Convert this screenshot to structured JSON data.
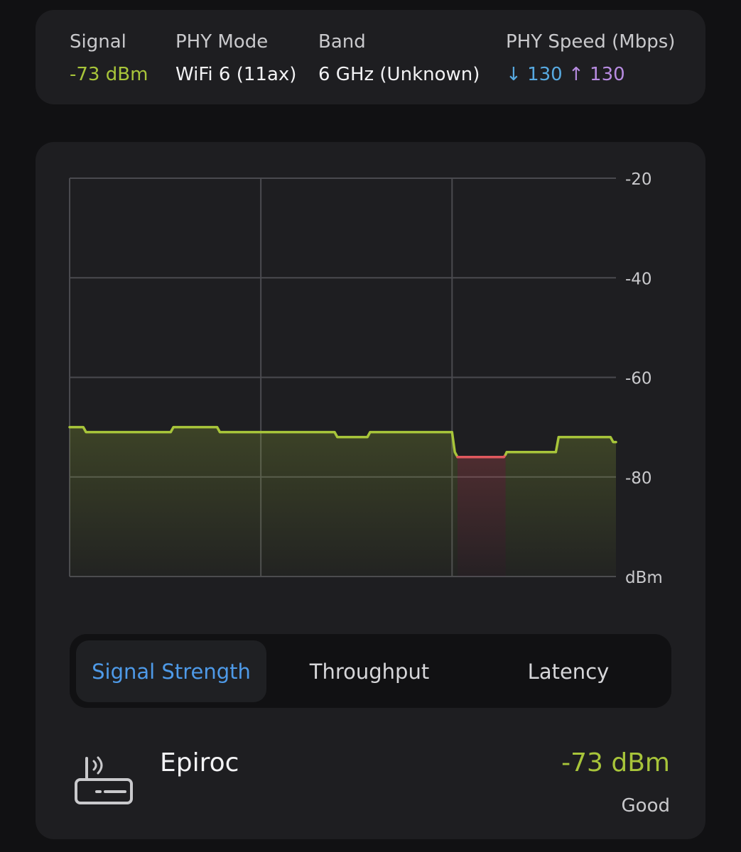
{
  "info": {
    "signal": {
      "label": "Signal",
      "value": "-73 dBm"
    },
    "phy_mode": {
      "label": "PHY Mode",
      "value": "WiFi 6 (11ax)"
    },
    "band": {
      "label": "Band",
      "value": "6 GHz (Unknown)"
    },
    "phy_speed": {
      "label": "PHY Speed (Mbps)",
      "down_arrow": "↓",
      "down": "130",
      "up_arrow": "↑",
      "up": "130"
    }
  },
  "chart_data": {
    "type": "area",
    "y_unit_label": "dBm",
    "ylim": [
      -100,
      -20
    ],
    "y_ticks": [
      -20,
      -40,
      -60,
      -80
    ],
    "y_tick_labels": [
      "-20",
      "-40",
      "-60",
      "-80"
    ],
    "x_range": [
      0,
      100
    ],
    "x_gridlines": [
      35,
      70
    ],
    "grid": true,
    "series": [
      {
        "points": [
          [
            0,
            -70
          ],
          [
            2.5,
            -70
          ],
          [
            3,
            -71
          ],
          [
            18.5,
            -71
          ],
          [
            19,
            -70
          ],
          [
            27,
            -70
          ],
          [
            27.5,
            -71
          ],
          [
            48.5,
            -71
          ],
          [
            49,
            -72
          ],
          [
            54.5,
            -72
          ],
          [
            55,
            -71
          ],
          [
            70,
            -71
          ],
          [
            70.5,
            -75
          ],
          [
            71,
            -76
          ]
        ],
        "status": "good"
      },
      {
        "points": [
          [
            71,
            -76
          ],
          [
            79.5,
            -76
          ],
          [
            79.8,
            -75.5
          ]
        ],
        "status": "poor"
      },
      {
        "points": [
          [
            79.8,
            -75.5
          ],
          [
            80,
            -75
          ],
          [
            89,
            -75
          ],
          [
            89.5,
            -72
          ],
          [
            99,
            -72
          ],
          [
            99.5,
            -73
          ],
          [
            100,
            -73
          ]
        ],
        "status": "good"
      }
    ],
    "colors": {
      "good": "#a8c53a",
      "poor": "#e0595e"
    }
  },
  "tabs": [
    {
      "label": "Signal Strength",
      "active": true
    },
    {
      "label": "Throughput",
      "active": false
    },
    {
      "label": "Latency",
      "active": false
    }
  ],
  "network": {
    "icon": "router-icon",
    "name": "Epiroc",
    "signal": "-73 dBm",
    "quality": "Good"
  }
}
